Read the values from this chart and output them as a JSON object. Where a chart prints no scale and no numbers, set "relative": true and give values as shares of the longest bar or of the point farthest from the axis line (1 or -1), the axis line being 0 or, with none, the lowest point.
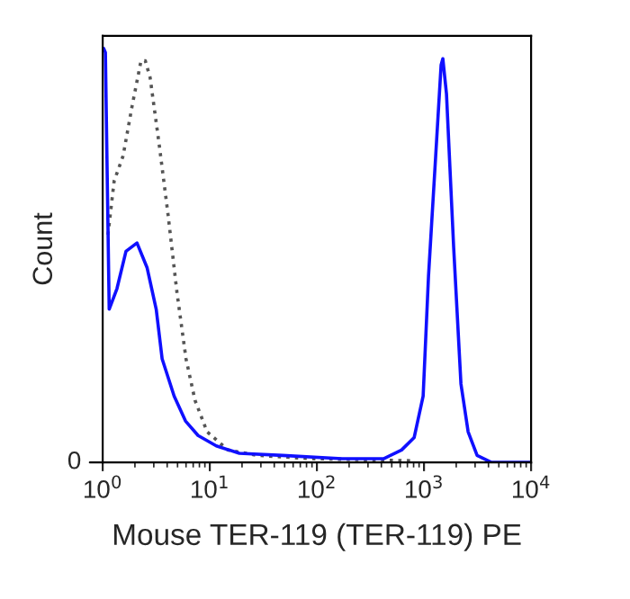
{
  "chart_data": {
    "type": "line",
    "relative": true,
    "log": "x",
    "xlabel": "Mouse TER-119 (TER-119) PE",
    "ylabel": "Count",
    "xlim": [
      1,
      10000
    ],
    "xticks": [
      {
        "value": 1,
        "label": "10$^{0}$"
      },
      {
        "value": 10,
        "label": "10$^{1}$"
      },
      {
        "value": 100,
        "label": "10$^{2}$"
      },
      {
        "value": 1000,
        "label": "10$^{3}$"
      },
      {
        "value": 10000,
        "label": "10$^{4}$"
      }
    ],
    "annotations": [
      "0"
    ],
    "grid": false,
    "series": [
      {
        "color": "#555555",
        "line_style": "dotted",
        "x": [
          1.12,
          1.28,
          1.55,
          1.88,
          2.28,
          2.5,
          2.77,
          3.36,
          4.07,
          4.94,
          6.0,
          7.28,
          9.44,
          14.8,
          27.9,
          89,
          809
        ],
        "values": [
          0.55,
          0.68,
          0.74,
          0.86,
          0.97,
          0.97,
          0.93,
          0.77,
          0.6,
          0.41,
          0.25,
          0.15,
          0.074,
          0.03,
          0.017,
          0.009,
          0.004
        ]
      },
      {
        "color": "#1010ff",
        "line_style": "solid",
        "x": [
          1.02,
          1.06,
          1.15,
          1.36,
          1.65,
          2.09,
          2.6,
          3.16,
          3.59,
          4.65,
          5.93,
          7.78,
          11.5,
          18.9,
          48,
          172,
          419,
          617,
          809,
          982,
          1102,
          1286,
          1445,
          1500,
          1622,
          1892,
          2213,
          2583,
          3134,
          4266,
          10000
        ],
        "values": [
          1.0,
          0.99,
          0.37,
          0.42,
          0.51,
          0.53,
          0.47,
          0.37,
          0.25,
          0.16,
          0.1,
          0.065,
          0.04,
          0.022,
          0.017,
          0.009,
          0.009,
          0.03,
          0.06,
          0.16,
          0.45,
          0.74,
          0.96,
          0.975,
          0.89,
          0.52,
          0.19,
          0.074,
          0.017,
          0,
          0
        ]
      }
    ]
  }
}
